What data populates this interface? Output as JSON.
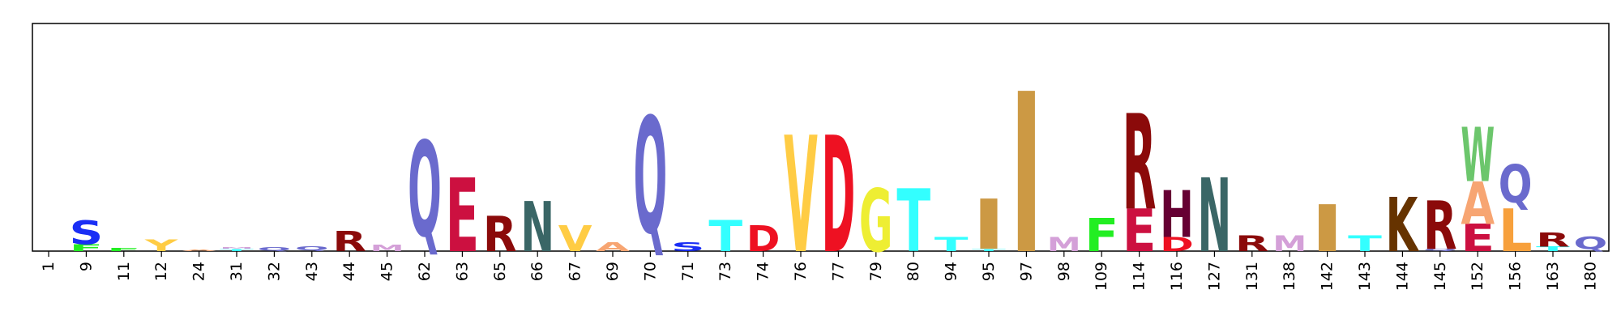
{
  "chart_data": {
    "type": "sequence-logo",
    "title": "",
    "xlabel": "",
    "ylabel": "",
    "grid": false,
    "ylim": [
      0,
      4.0
    ],
    "positions": [
      {
        "label": "1",
        "letters": []
      },
      {
        "label": "9",
        "letters": [
          {
            "char": "F",
            "value": 0.12,
            "color": "#22ee22"
          },
          {
            "char": "S",
            "value": 0.42,
            "color": "#1a2ef5"
          }
        ]
      },
      {
        "label": "11",
        "letters": [
          {
            "char": "F",
            "value": 0.05,
            "color": "#22ee22"
          }
        ]
      },
      {
        "label": "12",
        "letters": [
          {
            "char": "Y",
            "value": 0.2,
            "color": "#ffcc44"
          }
        ]
      },
      {
        "label": "24",
        "letters": [
          {
            "char": "A",
            "value": 0.03,
            "color": "#f7a572"
          }
        ]
      },
      {
        "label": "31",
        "letters": [
          {
            "char": "T",
            "value": 0.04,
            "color": "#33ffff"
          },
          {
            "char": "M",
            "value": 0.03,
            "color": "#d4a0d8"
          }
        ]
      },
      {
        "label": "32",
        "letters": [
          {
            "char": "Q",
            "value": 0.07,
            "color": "#6a6acd"
          }
        ]
      },
      {
        "label": "43",
        "letters": [
          {
            "char": "Q",
            "value": 0.08,
            "color": "#6a6acd"
          }
        ]
      },
      {
        "label": "44",
        "letters": [
          {
            "char": "R",
            "value": 0.35,
            "color": "#8b0a0a"
          }
        ]
      },
      {
        "label": "45",
        "letters": [
          {
            "char": "M",
            "value": 0.11,
            "color": "#d4a0d8"
          }
        ]
      },
      {
        "label": "62",
        "letters": [
          {
            "char": "Q",
            "value": 1.95,
            "color": "#6a6acd"
          }
        ]
      },
      {
        "label": "63",
        "letters": [
          {
            "char": "E",
            "value": 1.3,
            "color": "#cc1040"
          }
        ]
      },
      {
        "label": "65",
        "letters": [
          {
            "char": "R",
            "value": 0.62,
            "color": "#8b0a0a"
          }
        ]
      },
      {
        "label": "66",
        "letters": [
          {
            "char": "N",
            "value": 0.88,
            "color": "#3a6666"
          }
        ]
      },
      {
        "label": "67",
        "letters": [
          {
            "char": "V",
            "value": 0.45,
            "color": "#ffcc44"
          }
        ]
      },
      {
        "label": "69",
        "letters": [
          {
            "char": "A",
            "value": 0.16,
            "color": "#f7a572"
          }
        ]
      },
      {
        "label": "70",
        "letters": [
          {
            "char": "Q",
            "value": 2.38,
            "color": "#6a6acd"
          }
        ]
      },
      {
        "label": "71",
        "letters": [
          {
            "char": "S",
            "value": 0.16,
            "color": "#1a2ef5"
          }
        ]
      },
      {
        "label": "73",
        "letters": [
          {
            "char": "T",
            "value": 0.55,
            "color": "#33ffff"
          }
        ]
      },
      {
        "label": "74",
        "letters": [
          {
            "char": "D",
            "value": 0.45,
            "color": "#ee1122"
          }
        ]
      },
      {
        "label": "76",
        "letters": [
          {
            "char": "V",
            "value": 2.05,
            "color": "#ffcc44"
          }
        ]
      },
      {
        "label": "77",
        "letters": [
          {
            "char": "D",
            "value": 2.05,
            "color": "#ee1122"
          }
        ]
      },
      {
        "label": "79",
        "letters": [
          {
            "char": "G",
            "value": 1.1,
            "color": "#eeee33"
          }
        ]
      },
      {
        "label": "80",
        "letters": [
          {
            "char": "T",
            "value": 1.1,
            "color": "#33ffff"
          }
        ]
      },
      {
        "label": "94",
        "letters": [
          {
            "char": "T",
            "value": 0.25,
            "color": "#33ffff"
          }
        ]
      },
      {
        "label": "95",
        "letters": [
          {
            "char": "T",
            "value": 0.04,
            "color": "#33ffff"
          },
          {
            "char": "I",
            "value": 0.88,
            "color": "#cc9944"
          }
        ]
      },
      {
        "label": "97",
        "letters": [
          {
            "char": "I",
            "value": 2.82,
            "color": "#cc9944"
          }
        ]
      },
      {
        "label": "98",
        "letters": [
          {
            "char": "M",
            "value": 0.25,
            "color": "#d4a0d8"
          }
        ]
      },
      {
        "label": "109",
        "letters": [
          {
            "char": "F",
            "value": 0.58,
            "color": "#22ee22"
          }
        ]
      },
      {
        "label": "114",
        "letters": [
          {
            "char": "E",
            "value": 0.75,
            "color": "#cc1040"
          },
          {
            "char": "R",
            "value": 1.68,
            "color": "#8b0a0a"
          }
        ]
      },
      {
        "label": "116",
        "letters": [
          {
            "char": "D",
            "value": 0.25,
            "color": "#ee1122"
          },
          {
            "char": "H",
            "value": 0.82,
            "color": "#660033"
          }
        ]
      },
      {
        "label": "127",
        "letters": [
          {
            "char": "N",
            "value": 1.3,
            "color": "#3a6666"
          }
        ]
      },
      {
        "label": "131",
        "letters": [
          {
            "char": "R",
            "value": 0.28,
            "color": "#8b0a0a"
          }
        ]
      },
      {
        "label": "138",
        "letters": [
          {
            "char": "M",
            "value": 0.28,
            "color": "#d4a0d8"
          }
        ]
      },
      {
        "label": "142",
        "letters": [
          {
            "char": "I",
            "value": 0.82,
            "color": "#cc9944"
          }
        ]
      },
      {
        "label": "143",
        "letters": [
          {
            "char": "T",
            "value": 0.28,
            "color": "#33ffff"
          }
        ]
      },
      {
        "label": "144",
        "letters": [
          {
            "char": "K",
            "value": 0.95,
            "color": "#663300"
          }
        ]
      },
      {
        "label": "145",
        "letters": [
          {
            "char": "Q",
            "value": 0.04,
            "color": "#6a6acd"
          },
          {
            "char": "R",
            "value": 0.85,
            "color": "#8b0a0a"
          }
        ]
      },
      {
        "label": "152",
        "letters": [
          {
            "char": "E",
            "value": 0.48,
            "color": "#cc1040"
          },
          {
            "char": "A",
            "value": 0.75,
            "color": "#f7a572"
          },
          {
            "char": "W",
            "value": 0.95,
            "color": "#6cc66c"
          }
        ]
      },
      {
        "label": "156",
        "letters": [
          {
            "char": "L",
            "value": 0.75,
            "color": "#f7a03c"
          },
          {
            "char": "Q",
            "value": 0.78,
            "color": "#6a6acd"
          }
        ]
      },
      {
        "label": "163",
        "letters": [
          {
            "char": "T",
            "value": 0.08,
            "color": "#33ffff"
          },
          {
            "char": "R",
            "value": 0.25,
            "color": "#8b0a0a"
          }
        ]
      },
      {
        "label": "180",
        "letters": [
          {
            "char": "Q",
            "value": 0.26,
            "color": "#6a6acd"
          }
        ]
      }
    ]
  }
}
